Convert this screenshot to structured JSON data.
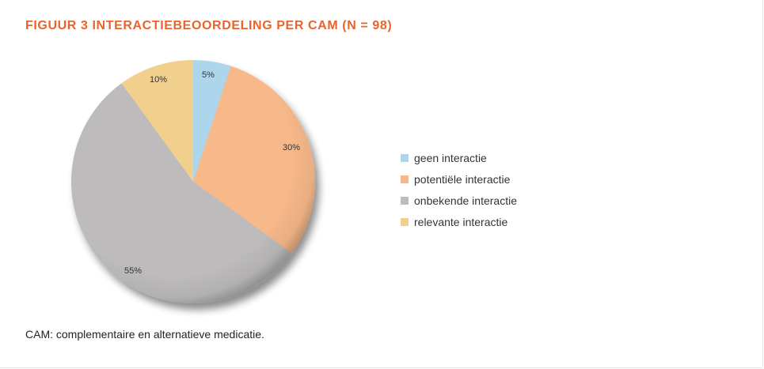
{
  "figure": {
    "title": "FIGUUR 3 INTERACTIEBEOORDELING PER CAM (N = 98)",
    "footnote": "CAM: complementaire en alternatieve medicatie."
  },
  "chart_data": {
    "type": "pie",
    "title": "FIGUUR 3 INTERACTIEBEOORDELING PER CAM (N = 98)",
    "legend_position": "right",
    "slices": [
      {
        "label": "geen interactie",
        "value": 5,
        "display": "5%",
        "color": "#add5ec"
      },
      {
        "label": "potentiële interactie",
        "value": 30,
        "display": "30%",
        "color": "#f7b88a"
      },
      {
        "label": "onbekende interactie",
        "value": 55,
        "display": "55%",
        "color": "#bdbbbc"
      },
      {
        "label": "relevante interactie",
        "value": 10,
        "display": "10%",
        "color": "#f0d08c"
      }
    ]
  }
}
